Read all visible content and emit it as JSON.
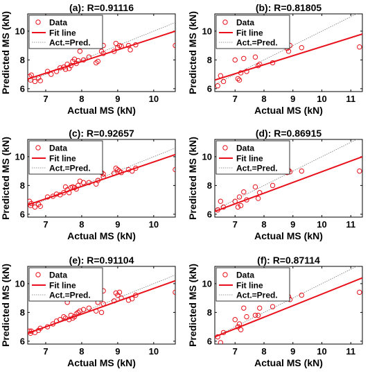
{
  "chart_data": [
    {
      "type": "scatter",
      "title": "(a): R=0.91116",
      "xlabel": "Actual MS (kN)",
      "ylabel": "Predicted MS (kN)",
      "xlim": [
        6.5,
        10.6
      ],
      "ylim": [
        5.8,
        11.2
      ],
      "xticks": [
        7,
        8,
        9,
        10
      ],
      "yticks": [
        6,
        8,
        10
      ],
      "legend": [
        "Data",
        "Fit line",
        "Act.=Pred."
      ],
      "legend_position": "top-left",
      "fit_line": [
        [
          6.5,
          6.67
        ],
        [
          10.6,
          10.0
        ]
      ],
      "points": [
        [
          6.55,
          6.85
        ],
        [
          6.58,
          6.6
        ],
        [
          6.6,
          6.95
        ],
        [
          6.7,
          6.5
        ],
        [
          6.8,
          6.75
        ],
        [
          6.85,
          6.55
        ],
        [
          7.05,
          7.2
        ],
        [
          7.15,
          7.0
        ],
        [
          7.3,
          7.2
        ],
        [
          7.4,
          7.45
        ],
        [
          7.5,
          7.5
        ],
        [
          7.55,
          7.35
        ],
        [
          7.6,
          7.7
        ],
        [
          7.65,
          7.4
        ],
        [
          7.7,
          7.6
        ],
        [
          7.75,
          7.9
        ],
        [
          7.8,
          8.05
        ],
        [
          7.85,
          7.75
        ],
        [
          7.9,
          7.95
        ],
        [
          7.95,
          8.6
        ],
        [
          8.05,
          8.0
        ],
        [
          8.2,
          8.2
        ],
        [
          8.4,
          7.8
        ],
        [
          8.45,
          7.9
        ],
        [
          8.55,
          8.6
        ],
        [
          8.6,
          8.45
        ],
        [
          8.6,
          9.0
        ],
        [
          8.9,
          8.6
        ],
        [
          8.95,
          9.15
        ],
        [
          9.0,
          8.85
        ],
        [
          9.05,
          9.0
        ],
        [
          9.1,
          8.95
        ],
        [
          9.3,
          9.0
        ],
        [
          9.35,
          8.7
        ],
        [
          9.5,
          9.05
        ],
        [
          10.6,
          9.0
        ]
      ]
    },
    {
      "type": "scatter",
      "title": "(b): R=0.81805",
      "xlabel": "Actual MS (kN)",
      "ylabel": "Predicted MS (kN)",
      "xlim": [
        6.3,
        11.4
      ],
      "ylim": [
        5.8,
        11.2
      ],
      "xticks": [
        7,
        8,
        9,
        10,
        11
      ],
      "yticks": [
        6,
        8,
        10
      ],
      "legend": [
        "Data",
        "Fit line",
        "Act.=Pred."
      ],
      "legend_position": "top-left",
      "fit_line": [
        [
          6.3,
          6.6
        ],
        [
          11.4,
          9.8
        ]
      ],
      "points": [
        [
          6.4,
          6.2
        ],
        [
          6.5,
          6.9
        ],
        [
          6.6,
          6.5
        ],
        [
          7.0,
          8.0
        ],
        [
          7.1,
          6.7
        ],
        [
          7.15,
          6.6
        ],
        [
          7.2,
          7.1
        ],
        [
          7.3,
          8.1
        ],
        [
          7.4,
          7.2
        ],
        [
          7.7,
          8.2
        ],
        [
          7.8,
          7.6
        ],
        [
          7.85,
          7.7
        ],
        [
          8.3,
          7.8
        ],
        [
          8.8,
          8.8
        ],
        [
          8.85,
          8.6
        ],
        [
          8.9,
          9.0
        ],
        [
          9.3,
          8.85
        ],
        [
          11.3,
          8.9
        ]
      ]
    },
    {
      "type": "scatter",
      "title": "(c): R=0.92657",
      "xlabel": "Actual MS (kN)",
      "ylabel": "Predicted MS (kN)",
      "xlim": [
        6.5,
        10.6
      ],
      "ylim": [
        5.8,
        11.2
      ],
      "xticks": [
        7,
        8,
        9,
        10
      ],
      "yticks": [
        6,
        8,
        10
      ],
      "legend": [
        "Data",
        "Fit line",
        "Act.=Pred."
      ],
      "legend_position": "top-left",
      "fit_line": [
        [
          6.5,
          6.65
        ],
        [
          10.6,
          10.15
        ]
      ],
      "points": [
        [
          6.55,
          6.9
        ],
        [
          6.58,
          6.6
        ],
        [
          6.6,
          6.75
        ],
        [
          6.7,
          6.5
        ],
        [
          6.8,
          6.7
        ],
        [
          6.85,
          6.55
        ],
        [
          7.05,
          7.2
        ],
        [
          7.2,
          7.25
        ],
        [
          7.3,
          7.4
        ],
        [
          7.4,
          7.35
        ],
        [
          7.5,
          7.5
        ],
        [
          7.55,
          7.9
        ],
        [
          7.6,
          7.7
        ],
        [
          7.65,
          7.5
        ],
        [
          7.7,
          7.85
        ],
        [
          7.75,
          7.9
        ],
        [
          7.8,
          7.85
        ],
        [
          7.85,
          7.75
        ],
        [
          7.9,
          8.0
        ],
        [
          7.95,
          8.3
        ],
        [
          8.05,
          8.2
        ],
        [
          8.2,
          8.2
        ],
        [
          8.4,
          8.1
        ],
        [
          8.45,
          8.35
        ],
        [
          8.55,
          8.9
        ],
        [
          8.6,
          8.8
        ],
        [
          8.6,
          8.6
        ],
        [
          8.9,
          8.85
        ],
        [
          8.95,
          9.2
        ],
        [
          9.0,
          9.1
        ],
        [
          9.05,
          9.0
        ],
        [
          9.1,
          8.9
        ],
        [
          9.3,
          9.1
        ],
        [
          9.4,
          9.0
        ],
        [
          9.5,
          9.2
        ],
        [
          10.6,
          9.1
        ]
      ]
    },
    {
      "type": "scatter",
      "title": "(d): R=0.86915",
      "xlabel": "Actual MS (kN)",
      "ylabel": "Predicted MS (kN)",
      "xlim": [
        6.3,
        11.4
      ],
      "ylim": [
        5.8,
        11.2
      ],
      "xticks": [
        7,
        8,
        9,
        10,
        11
      ],
      "yticks": [
        6,
        8,
        10
      ],
      "legend": [
        "Data",
        "Fit line",
        "Act.=Pred."
      ],
      "legend_position": "top-left",
      "fit_line": [
        [
          6.3,
          6.2
        ],
        [
          11.4,
          10.0
        ]
      ],
      "points": [
        [
          6.4,
          6.3
        ],
        [
          6.5,
          6.9
        ],
        [
          6.6,
          6.5
        ],
        [
          7.0,
          6.9
        ],
        [
          7.1,
          6.5
        ],
        [
          7.15,
          7.2
        ],
        [
          7.2,
          6.6
        ],
        [
          7.3,
          7.55
        ],
        [
          7.4,
          7.0
        ],
        [
          7.7,
          7.9
        ],
        [
          7.8,
          7.1
        ],
        [
          7.85,
          7.5
        ],
        [
          8.3,
          8.0
        ],
        [
          8.8,
          8.9
        ],
        [
          8.85,
          9.05
        ],
        [
          8.9,
          8.95
        ],
        [
          9.3,
          9.0
        ],
        [
          11.3,
          9.0
        ]
      ]
    },
    {
      "type": "scatter",
      "title": "(e): R=0.91104",
      "xlabel": "Actual MS (kN)",
      "ylabel": "Predicted MS (kN)",
      "xlim": [
        6.5,
        10.6
      ],
      "ylim": [
        5.8,
        11.2
      ],
      "xticks": [
        7,
        8,
        9,
        10
      ],
      "yticks": [
        6,
        8,
        10
      ],
      "legend": [
        "Data",
        "Fit line",
        "Act.=Pred."
      ],
      "legend_position": "top-left",
      "fit_line": [
        [
          6.5,
          6.55
        ],
        [
          10.6,
          10.2
        ]
      ],
      "points": [
        [
          6.55,
          6.7
        ],
        [
          6.58,
          6.55
        ],
        [
          6.6,
          6.7
        ],
        [
          6.7,
          6.6
        ],
        [
          6.8,
          6.75
        ],
        [
          6.85,
          6.9
        ],
        [
          7.05,
          7.0
        ],
        [
          7.2,
          7.2
        ],
        [
          7.3,
          7.4
        ],
        [
          7.4,
          7.5
        ],
        [
          7.5,
          7.7
        ],
        [
          7.55,
          7.6
        ],
        [
          7.6,
          8.7
        ],
        [
          7.65,
          7.5
        ],
        [
          7.7,
          7.8
        ],
        [
          7.75,
          7.6
        ],
        [
          7.8,
          7.7
        ],
        [
          7.85,
          7.9
        ],
        [
          7.9,
          8.0
        ],
        [
          7.95,
          8.1
        ],
        [
          8.05,
          8.2
        ],
        [
          8.2,
          8.3
        ],
        [
          8.4,
          8.1
        ],
        [
          8.45,
          8.7
        ],
        [
          8.55,
          8.0
        ],
        [
          8.6,
          9.5
        ],
        [
          8.6,
          8.6
        ],
        [
          8.9,
          8.8
        ],
        [
          8.95,
          9.35
        ],
        [
          9.0,
          9.2
        ],
        [
          9.05,
          9.4
        ],
        [
          9.1,
          9.0
        ],
        [
          9.3,
          8.85
        ],
        [
          9.4,
          8.95
        ],
        [
          9.5,
          9.2
        ],
        [
          10.6,
          9.4
        ]
      ]
    },
    {
      "type": "scatter",
      "title": "(f): R=0.87114",
      "xlabel": "Actual MS (kN)",
      "ylabel": "Predicted MS (kN)",
      "xlim": [
        6.3,
        11.4
      ],
      "ylim": [
        5.8,
        11.2
      ],
      "xticks": [
        7,
        8,
        9,
        10,
        11
      ],
      "yticks": [
        6,
        8,
        10
      ],
      "legend": [
        "Data",
        "Fit line",
        "Act.=Pred."
      ],
      "legend_position": "top-left",
      "fit_line": [
        [
          6.3,
          6.3
        ],
        [
          11.4,
          10.4
        ]
      ],
      "points": [
        [
          6.4,
          6.3
        ],
        [
          6.5,
          5.9
        ],
        [
          6.6,
          6.6
        ],
        [
          7.0,
          7.5
        ],
        [
          7.1,
          7.0
        ],
        [
          7.15,
          7.2
        ],
        [
          7.2,
          6.8
        ],
        [
          7.3,
          8.3
        ],
        [
          7.4,
          7.7
        ],
        [
          7.7,
          7.8
        ],
        [
          7.8,
          7.8
        ],
        [
          7.85,
          8.3
        ],
        [
          8.3,
          8.4
        ],
        [
          8.8,
          9.0
        ],
        [
          8.85,
          9.1
        ],
        [
          8.9,
          8.9
        ],
        [
          9.3,
          9.2
        ],
        [
          11.3,
          9.4
        ]
      ]
    }
  ]
}
